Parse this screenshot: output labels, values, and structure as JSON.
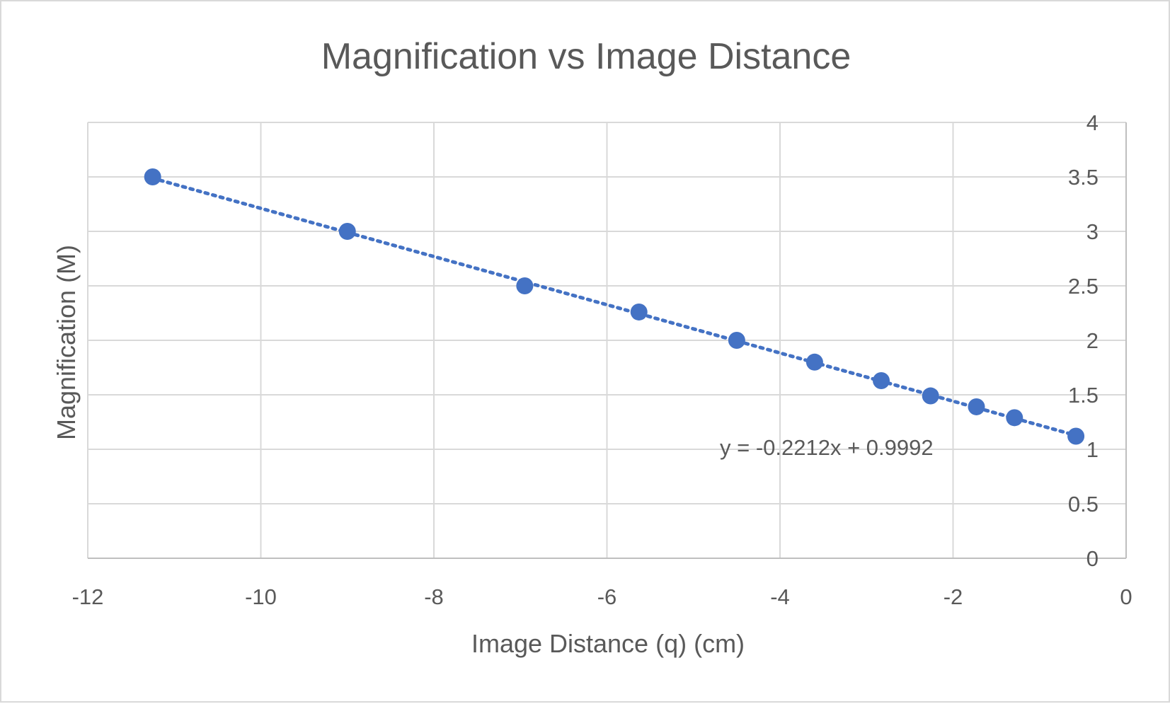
{
  "chart_data": {
    "type": "scatter",
    "title": "Magnification vs Image Distance",
    "xlabel": "Image Distance (q) (cm)",
    "ylabel": "Magnification (M)",
    "xlim": [
      -12,
      0
    ],
    "ylim": [
      0,
      4
    ],
    "x_ticks": [
      "-12",
      "-10",
      "-8",
      "-6",
      "-4",
      "-2",
      "0"
    ],
    "y_ticks": [
      "0",
      "0.5",
      "1",
      "1.5",
      "2",
      "2.5",
      "3",
      "3.5",
      "4"
    ],
    "y_axis_side": "right",
    "grid": true,
    "legend": "none",
    "series": [
      {
        "color": "#4472c4",
        "points": [
          {
            "x": -11.25,
            "y": 3.5
          },
          {
            "x": -9.0,
            "y": 3.0
          },
          {
            "x": -6.95,
            "y": 2.5
          },
          {
            "x": -5.63,
            "y": 2.26
          },
          {
            "x": -4.5,
            "y": 2.0
          },
          {
            "x": -3.6,
            "y": 1.8
          },
          {
            "x": -2.83,
            "y": 1.63
          },
          {
            "x": -2.26,
            "y": 1.49
          },
          {
            "x": -1.73,
            "y": 1.39
          },
          {
            "x": -1.29,
            "y": 1.29
          },
          {
            "x": -0.58,
            "y": 1.12
          }
        ]
      }
    ],
    "trendline": {
      "type": "linear",
      "style": "dotted",
      "color": "#4472c4",
      "slope": -0.2212,
      "intercept": 0.9992,
      "x_range": [
        -11.25,
        -0.58
      ],
      "equation": "y = -0.2212x + 0.9992"
    }
  }
}
